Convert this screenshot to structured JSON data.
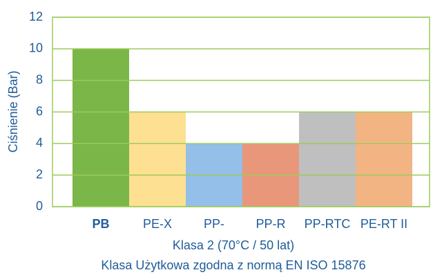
{
  "chart_data": {
    "type": "bar",
    "y_label": "Ciśnienie (Bar)",
    "x_label": [
      "Klasa 2 (70°C / 50 lat)",
      "Klasa Użytkowa zgodna z normą EN ISO 15876"
    ],
    "categories": [
      "PB",
      "PE-X",
      "PP-",
      "PP-R",
      "PP-RTC",
      "PE-RT II"
    ],
    "values": [
      10,
      6,
      4,
      4,
      6,
      6
    ],
    "colors": [
      "#7ab648",
      "#fde091",
      "#93bfe8",
      "#e9977a",
      "#bfbfbf",
      "#f2b483"
    ],
    "ylim": [
      0,
      12
    ],
    "yticks": [
      0,
      2,
      4,
      6,
      8,
      10,
      12
    ],
    "grid": true
  }
}
